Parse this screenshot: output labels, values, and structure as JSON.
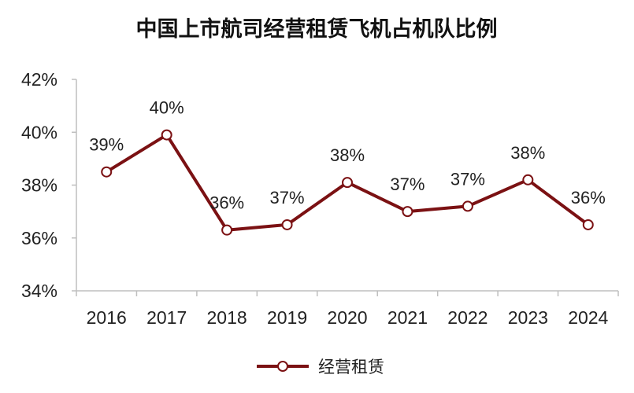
{
  "chart_data": {
    "type": "line",
    "title": "中国上市航司经营租赁飞机占机队比例",
    "categories": [
      "2016",
      "2017",
      "2018",
      "2019",
      "2020",
      "2021",
      "2022",
      "2023",
      "2024"
    ],
    "series": [
      {
        "name": "经营租赁",
        "values": [
          38.5,
          39.9,
          36.3,
          36.5,
          38.1,
          37.0,
          37.2,
          38.2,
          36.5
        ],
        "data_labels": [
          "39%",
          "40%",
          "36%",
          "37%",
          "38%",
          "37%",
          "37%",
          "38%",
          "36%"
        ]
      }
    ],
    "yticks": [
      34,
      36,
      38,
      40,
      42
    ],
    "ytick_labels": [
      "34%",
      "36%",
      "38%",
      "40%",
      "42%"
    ],
    "ylim": [
      34,
      42
    ],
    "grid": false,
    "legend_position": "bottom-center",
    "colors": {
      "line": "#7b1113",
      "marker_fill": "#ffffff",
      "axis": "#bfbfbf"
    }
  }
}
